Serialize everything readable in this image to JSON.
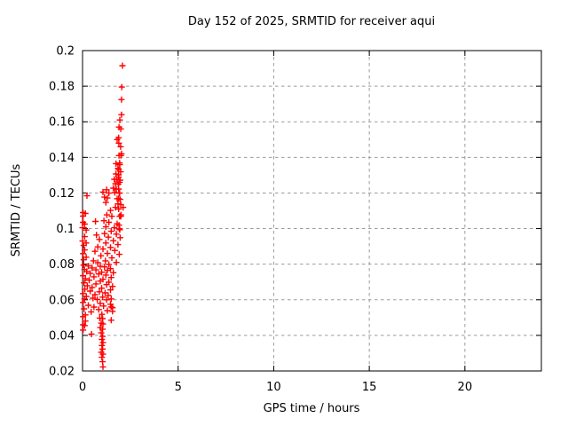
{
  "chart_data": {
    "type": "scatter",
    "title": "Day 152 of 2025, SRMTID for receiver aqui",
    "xlabel": "GPS time / hours",
    "ylabel": "SRMTID / TECUs",
    "xlim": [
      0,
      24
    ],
    "ylim": [
      0.02,
      0.2
    ],
    "x_ticks": [
      {
        "v": 0,
        "label": "0"
      },
      {
        "v": 5,
        "label": "5"
      },
      {
        "v": 10,
        "label": "10"
      },
      {
        "v": 15,
        "label": "15"
      },
      {
        "v": 20,
        "label": "20"
      }
    ],
    "y_ticks": [
      {
        "v": 0.02,
        "label": "0.02"
      },
      {
        "v": 0.04,
        "label": "0.04"
      },
      {
        "v": 0.06,
        "label": "0.06"
      },
      {
        "v": 0.08,
        "label": "0.08"
      },
      {
        "v": 0.1,
        "label": "0.1"
      },
      {
        "v": 0.12,
        "label": "0.12"
      },
      {
        "v": 0.14,
        "label": "0.14"
      },
      {
        "v": 0.16,
        "label": "0.16"
      },
      {
        "v": 0.18,
        "label": "0.18"
      },
      {
        "v": 0.2,
        "label": "0.2"
      }
    ],
    "grid": true,
    "legend": "none",
    "marker": "plus",
    "marker_color": "#ff0000",
    "grid_color": "#9b9b9b",
    "frame_color": "#000000",
    "series_name": "SRMTID",
    "points": [
      [
        2.09,
        0.1915
      ],
      [
        2.05,
        0.1795
      ],
      [
        2.04,
        0.1725
      ],
      [
        2.04,
        0.164
      ],
      [
        1.95,
        0.161
      ],
      [
        1.91,
        0.157
      ],
      [
        2.0,
        0.156
      ],
      [
        1.89,
        0.151
      ],
      [
        1.81,
        0.15
      ],
      [
        1.9,
        0.148
      ],
      [
        1.99,
        0.146
      ],
      [
        2.04,
        0.142
      ],
      [
        1.91,
        0.141
      ],
      [
        2.01,
        0.141
      ],
      [
        1.94,
        0.1369
      ],
      [
        1.75,
        0.1365
      ],
      [
        1.95,
        0.1359
      ],
      [
        1.85,
        0.1339
      ],
      [
        1.89,
        0.1332
      ],
      [
        1.99,
        0.1319
      ],
      [
        1.75,
        0.1307
      ],
      [
        1.89,
        0.1302
      ],
      [
        1.89,
        0.1289
      ],
      [
        1.66,
        0.1277
      ],
      [
        1.8,
        0.1277
      ],
      [
        1.97,
        0.1272
      ],
      [
        1.94,
        0.126
      ],
      [
        1.72,
        0.1252
      ],
      [
        1.87,
        0.1249
      ],
      [
        1.61,
        0.1227
      ],
      [
        1.89,
        0.1222
      ],
      [
        1.77,
        0.1222
      ],
      [
        1.26,
        0.1218
      ],
      [
        1.07,
        0.1205
      ],
      [
        1.38,
        0.1199
      ],
      [
        1.69,
        0.1202
      ],
      [
        1.92,
        0.1199
      ],
      [
        1.94,
        0.1199
      ],
      [
        0.23,
        0.1185
      ],
      [
        1.15,
        0.1177
      ],
      [
        1.3,
        0.1172
      ],
      [
        1.81,
        0.1168
      ],
      [
        1.89,
        0.1169
      ],
      [
        1.97,
        0.1164
      ],
      [
        1.22,
        0.1147
      ],
      [
        1.85,
        0.1139
      ],
      [
        2.0,
        0.1135
      ],
      [
        1.72,
        0.1119
      ],
      [
        2.12,
        0.1119
      ],
      [
        1.89,
        0.111
      ],
      [
        1.46,
        0.1102
      ],
      [
        1.27,
        0.1077
      ],
      [
        2.01,
        0.1077
      ],
      [
        1.53,
        0.1069
      ],
      [
        2.0,
        0.1069
      ],
      [
        1.94,
        0.1069
      ],
      [
        0.03,
        0.109
      ],
      [
        0.15,
        0.1085
      ],
      [
        0.03,
        0.107
      ],
      [
        1.12,
        0.1044
      ],
      [
        1.38,
        0.1035
      ],
      [
        0.68,
        0.104
      ],
      [
        0.03,
        0.1035
      ],
      [
        0.11,
        0.1025
      ],
      [
        1.81,
        0.1027
      ],
      [
        1.91,
        0.1019
      ],
      [
        1.22,
        0.101
      ],
      [
        1.66,
        0.1005
      ],
      [
        0.0,
        0.1005
      ],
      [
        1.92,
        0.0999
      ],
      [
        1.95,
        0.0994
      ],
      [
        0.19,
        0.0992
      ],
      [
        1.5,
        0.0985
      ],
      [
        1.15,
        0.0972
      ],
      [
        1.77,
        0.0969
      ],
      [
        0.73,
        0.0964
      ],
      [
        0.11,
        0.0955
      ],
      [
        1.35,
        0.0952
      ],
      [
        1.97,
        0.0949
      ],
      [
        0.88,
        0.0939
      ],
      [
        1.61,
        0.0932
      ],
      [
        0.0,
        0.093
      ],
      [
        0.19,
        0.0919
      ],
      [
        1.22,
        0.0919
      ],
      [
        1.85,
        0.091
      ],
      [
        0.06,
        0.0905
      ],
      [
        0.8,
        0.0897
      ],
      [
        1.46,
        0.0894
      ],
      [
        1.07,
        0.0885
      ],
      [
        0.11,
        0.088
      ],
      [
        1.69,
        0.0877
      ],
      [
        0.65,
        0.0872
      ],
      [
        1.3,
        0.086
      ],
      [
        0.03,
        0.0859
      ],
      [
        1.92,
        0.0855
      ],
      [
        0.96,
        0.0847
      ],
      [
        0.19,
        0.0839
      ],
      [
        1.53,
        0.0835
      ],
      [
        0.06,
        0.0825
      ],
      [
        0.57,
        0.0819
      ],
      [
        1.2,
        0.0819
      ],
      [
        1.77,
        0.081
      ],
      [
        0.8,
        0.0809
      ],
      [
        1.38,
        0.0798
      ],
      [
        0.05,
        0.0795
      ],
      [
        0.3,
        0.079
      ],
      [
        0.93,
        0.0788
      ],
      [
        1.15,
        0.0785
      ],
      [
        0.5,
        0.0779
      ],
      [
        1.46,
        0.0775
      ],
      [
        0.1,
        0.077
      ],
      [
        0.7,
        0.0768
      ],
      [
        1.3,
        0.0765
      ],
      [
        0.22,
        0.0759
      ],
      [
        1.0,
        0.0755
      ],
      [
        1.61,
        0.0752
      ],
      [
        0.4,
        0.0748
      ],
      [
        0.85,
        0.0745
      ],
      [
        1.22,
        0.0739
      ],
      [
        0.03,
        0.0735
      ],
      [
        0.6,
        0.0729
      ],
      [
        1.5,
        0.0725
      ],
      [
        0.15,
        0.0719
      ],
      [
        1.07,
        0.0715
      ],
      [
        0.35,
        0.071
      ],
      [
        0.93,
        0.0705
      ],
      [
        1.38,
        0.0699
      ],
      [
        0.08,
        0.0695
      ],
      [
        0.7,
        0.0689
      ],
      [
        1.26,
        0.0685
      ],
      [
        0.25,
        0.0679
      ],
      [
        1.57,
        0.0675
      ],
      [
        0.5,
        0.0669
      ],
      [
        1.0,
        0.0665
      ],
      [
        0.12,
        0.0659
      ],
      [
        1.46,
        0.0655
      ],
      [
        0.4,
        0.0649
      ],
      [
        0.88,
        0.0645
      ],
      [
        1.18,
        0.0639
      ],
      [
        0.03,
        0.0635
      ],
      [
        0.65,
        0.0629
      ],
      [
        1.34,
        0.0625
      ],
      [
        0.2,
        0.0619
      ],
      [
        1.05,
        0.0615
      ],
      [
        0.55,
        0.0609
      ],
      [
        1.5,
        0.0605
      ],
      [
        0.1,
        0.0605
      ],
      [
        0.77,
        0.0602
      ],
      [
        1.26,
        0.06
      ],
      [
        0.03,
        0.0585
      ],
      [
        0.93,
        0.058
      ],
      [
        1.46,
        0.0575
      ],
      [
        0.3,
        0.0569
      ],
      [
        1.1,
        0.0565
      ],
      [
        0.6,
        0.0559
      ],
      [
        1.5,
        0.056
      ],
      [
        1.57,
        0.0555
      ],
      [
        0.08,
        0.0549
      ],
      [
        0.85,
        0.0545
      ],
      [
        1.3,
        0.0539
      ],
      [
        1.57,
        0.0535
      ],
      [
        0.45,
        0.0532
      ],
      [
        1.01,
        0.0518
      ],
      [
        0.15,
        0.0515
      ],
      [
        0.03,
        0.0505
      ],
      [
        0.9,
        0.0497
      ],
      [
        1.05,
        0.0494
      ],
      [
        1.5,
        0.0485
      ],
      [
        0.15,
        0.048
      ],
      [
        0.98,
        0.0469
      ],
      [
        1.07,
        0.0464
      ],
      [
        0.03,
        0.046
      ],
      [
        0.11,
        0.0455
      ],
      [
        0.93,
        0.0444
      ],
      [
        1.05,
        0.0435
      ],
      [
        0.03,
        0.043
      ],
      [
        0.98,
        0.0414
      ],
      [
        0.47,
        0.0407
      ],
      [
        1.05,
        0.0394
      ],
      [
        1.01,
        0.0377
      ],
      [
        1.07,
        0.036
      ],
      [
        1.01,
        0.0343
      ],
      [
        1.05,
        0.0323
      ],
      [
        0.98,
        0.0305
      ],
      [
        1.07,
        0.0294
      ],
      [
        1.01,
        0.0277
      ],
      [
        1.05,
        0.0252
      ],
      [
        1.07,
        0.0223
      ]
    ]
  }
}
